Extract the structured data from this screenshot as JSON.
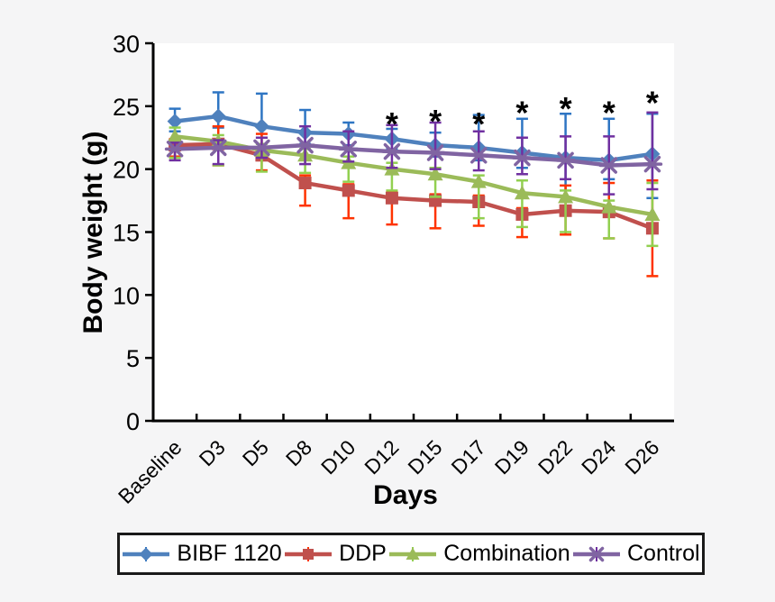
{
  "figure": {
    "background": "#f5f5f6",
    "plot_background": "#ffffff",
    "axis_color": "#000000"
  },
  "chart_data": {
    "type": "line",
    "title": "",
    "xlabel": "Days",
    "ylabel": "Body weight (g)",
    "ylim": [
      0,
      30
    ],
    "yticks": [
      0,
      5,
      10,
      15,
      20,
      25,
      30
    ],
    "grid": false,
    "legend_position": "bottom",
    "categories": [
      "Baseline",
      "D3",
      "D5",
      "D8",
      "D10",
      "D12",
      "D15",
      "D17",
      "D19",
      "D22",
      "D24",
      "D26"
    ],
    "series": [
      {
        "name": "BIBF 1120",
        "marker": "diamond",
        "color": "#4f81bd",
        "error_color": "#2e75c3",
        "values": [
          23.8,
          24.2,
          23.4,
          22.9,
          22.8,
          22.4,
          21.9,
          21.7,
          21.3,
          20.9,
          20.7,
          21.2
        ],
        "err_up": [
          1.0,
          1.9,
          2.6,
          1.8,
          0.9,
          0.8,
          1.0,
          2.6,
          2.7,
          3.5,
          3.3,
          3.2
        ],
        "err_down": [
          0.8,
          0.9,
          0.9,
          0.9,
          0.9,
          0.8,
          0.9,
          1.0,
          1.2,
          3.4,
          1.5,
          3.5
        ]
      },
      {
        "name": "DDP",
        "marker": "square",
        "color": "#c0504d",
        "error_color": "#ff3300",
        "values": [
          21.9,
          22.0,
          21.1,
          18.9,
          18.3,
          17.7,
          17.5,
          17.4,
          16.4,
          16.7,
          16.6,
          15.3
        ],
        "err_up": [
          0.5,
          1.4,
          1.7,
          0.6,
          0.5,
          0.5,
          0.5,
          0.5,
          0.5,
          2.0,
          2.3,
          3.8
        ],
        "err_down": [
          0.9,
          1.7,
          1.2,
          1.8,
          2.2,
          2.1,
          2.2,
          1.9,
          1.8,
          1.9,
          2.1,
          3.8
        ]
      },
      {
        "name": "Combination",
        "marker": "triangle",
        "color": "#9bbb59",
        "error_color": "#92d050",
        "values": [
          22.6,
          22.2,
          21.5,
          21.1,
          20.5,
          20.0,
          19.6,
          19.0,
          18.1,
          17.8,
          17.0,
          16.4
        ],
        "err_up": [
          0.7,
          0.5,
          0.5,
          0.5,
          0.5,
          0.5,
          0.5,
          0.5,
          1.0,
          0.5,
          0.5,
          2.5
        ],
        "err_down": [
          1.7,
          1.9,
          1.7,
          1.4,
          1.5,
          1.7,
          1.8,
          2.9,
          2.7,
          2.8,
          2.5,
          2.5
        ]
      },
      {
        "name": "Control",
        "marker": "xstar",
        "color": "#8064a2",
        "error_color": "#7030a0",
        "values": [
          21.6,
          21.7,
          21.7,
          21.9,
          21.6,
          21.4,
          21.3,
          21.1,
          20.9,
          20.7,
          20.3,
          20.4
        ],
        "err_up": [
          0.5,
          0.6,
          0.8,
          1.5,
          1.4,
          2.1,
          2.4,
          1.9,
          1.6,
          1.9,
          2.3,
          4.1
        ],
        "err_down": [
          0.9,
          1.3,
          0.8,
          1.5,
          1.0,
          1.3,
          1.3,
          1.2,
          1.3,
          1.5,
          2.3,
          2.0
        ]
      }
    ],
    "annotations": [
      {
        "x": "D12",
        "y": 24.2,
        "text": "*"
      },
      {
        "x": "D15",
        "y": 24.4,
        "text": "*"
      },
      {
        "x": "D17",
        "y": 24.2,
        "text": "*"
      },
      {
        "x": "D19",
        "y": 25.1,
        "text": "*"
      },
      {
        "x": "D22",
        "y": 25.4,
        "text": "*"
      },
      {
        "x": "D24",
        "y": 25.1,
        "text": "*"
      },
      {
        "x": "D26",
        "y": 25.9,
        "text": "*"
      }
    ]
  }
}
